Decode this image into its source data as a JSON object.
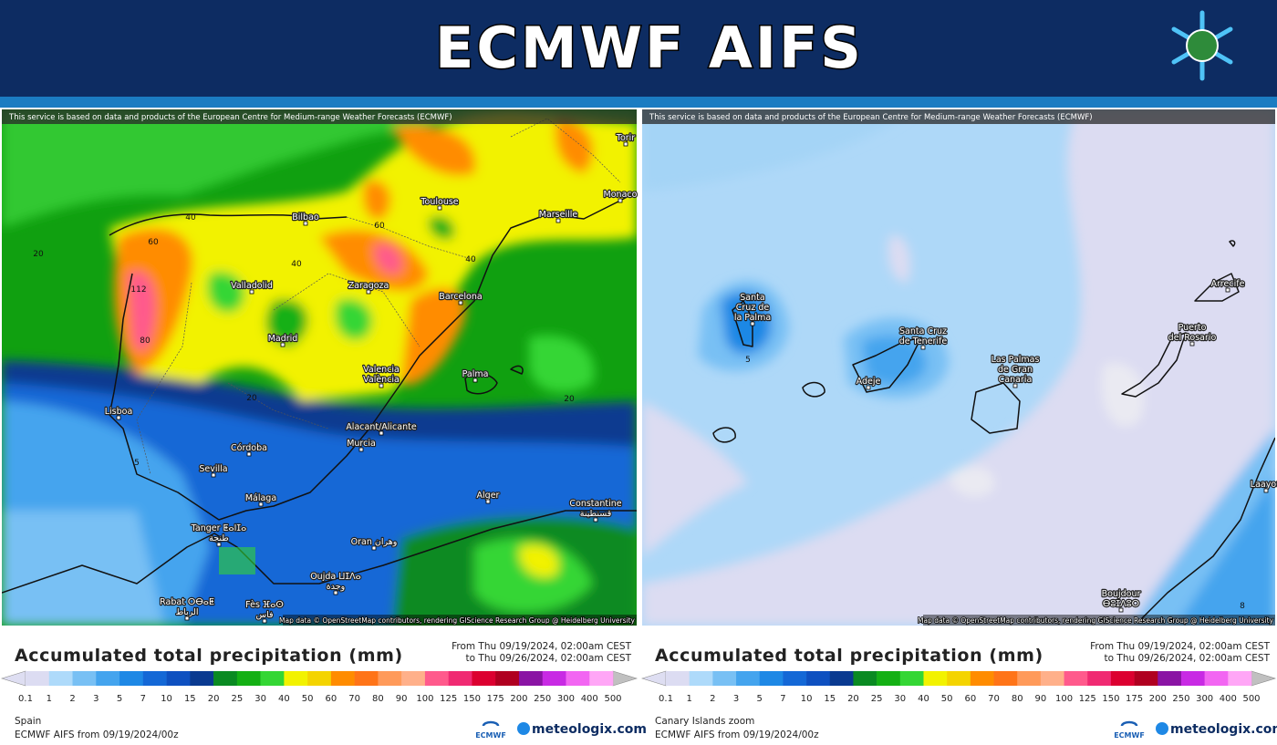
{
  "header": {
    "title": "ECMWF AIFS"
  },
  "panels": [
    {
      "attribution": "This service is based on data and products of the European Centre for Medium-range Weather Forecasts (ECMWF)",
      "map_credit": "Map data © OpenStreetMap contributors, rendering GIScience Research Group @ Heidelberg University",
      "places": [
        [
          "Torir"
        ],
        [
          "Monaco"
        ],
        [
          "Toulouse"
        ],
        [
          "Marseille"
        ],
        [
          "Bilbao"
        ],
        [
          "Valladolid"
        ],
        [
          "Zaragoza"
        ],
        [
          "Barcelona"
        ],
        [
          "Madrid"
        ],
        [
          "Valencia",
          "València"
        ],
        [
          "Palma"
        ],
        [
          "Lisboa"
        ],
        [
          "Alacant/Alicante"
        ],
        [
          "Murcia"
        ],
        [
          "Córdoba"
        ],
        [
          "Sevilla"
        ],
        [
          "Málaga"
        ],
        [
          "Alger"
        ],
        [
          "Constantine",
          "قسنطينة"
        ],
        [
          "Tanger ⵟⴰⵏⵊⴰ",
          "طنجة"
        ],
        [
          "Oran وهران"
        ],
        [
          "Oujda ⵡⵊⴷⴰ",
          "وجدة"
        ],
        [
          "Rabat ⵔⴱⴰⵟ",
          "الرباط"
        ],
        [
          "Fès ⴼⴰⵙ",
          "فاس"
        ]
      ],
      "contour_labels": [
        20,
        40,
        60,
        112,
        80,
        40,
        60,
        40,
        20,
        20,
        5
      ],
      "legend": {
        "title": "Accumulated total precipitation (mm)",
        "from": "From Thu 09/19/2024, 02:00am CEST",
        "to": "to Thu 09/26/2024, 02:00am CEST",
        "ticks": [
          0.1,
          1,
          2,
          3,
          5,
          7,
          10,
          15,
          20,
          25,
          30,
          40,
          50,
          60,
          70,
          80,
          90,
          100,
          125,
          150,
          175,
          200,
          250,
          300,
          400,
          500
        ],
        "region": "Spain",
        "model_run": "ECMWF AIFS from 09/19/2024/00z",
        "logos": [
          "ECMWF",
          "meteologix.com"
        ]
      }
    },
    {
      "attribution": "This service is based on data and products of the European Centre for Medium-range Weather Forecasts (ECMWF)",
      "map_credit": "Map data © OpenStreetMap contributors, rendering GIScience Research Group @ Heidelberg University",
      "places": [
        [
          "Santa",
          "Cruz de",
          "la Palma"
        ],
        [
          "Santa Cruz",
          "de Tenerife"
        ],
        [
          "Adeje"
        ],
        [
          "Las Palmas",
          "de Gran",
          "Canaria"
        ],
        [
          "Arrecife"
        ],
        [
          "Puerto",
          "del Rosario"
        ],
        [
          "Laayou"
        ],
        [
          "Boujdour",
          "ⴱⵓⵊⴷⵓⵔ"
        ]
      ],
      "contour_labels": [
        5,
        8
      ],
      "legend": {
        "title": "Accumulated total precipitation (mm)",
        "from": "From Thu 09/19/2024, 02:00am CEST",
        "to": "to Thu 09/26/2024, 02:00am CEST",
        "ticks": [
          0.1,
          1,
          2,
          3,
          5,
          7,
          10,
          15,
          20,
          25,
          30,
          40,
          50,
          60,
          70,
          80,
          90,
          100,
          125,
          150,
          175,
          200,
          250,
          300,
          400,
          500
        ],
        "region": "Canary Islands zoom",
        "model_run": "ECMWF AIFS from 09/19/2024/00z",
        "logos": [
          "ECMWF",
          "meteologix.com"
        ]
      }
    }
  ],
  "colorbar": {
    "under_color": "#dedef2",
    "over_color": "#c0c0c0",
    "colors": [
      "#dcdcf2",
      "#aedafa",
      "#78c0f4",
      "#44a4ee",
      "#1e88e5",
      "#1468d6",
      "#0e50c0",
      "#0a3a90",
      "#0a8a22",
      "#14b014",
      "#34d634",
      "#f2f200",
      "#f4d400",
      "#ff8c00",
      "#ff7418",
      "#ff9a5a",
      "#ffb08a",
      "#ff5a8c",
      "#f02a72",
      "#dc0030",
      "#b00020",
      "#8a14a4",
      "#c82ae4",
      "#f266f2",
      "#ffa6f6"
    ]
  }
}
